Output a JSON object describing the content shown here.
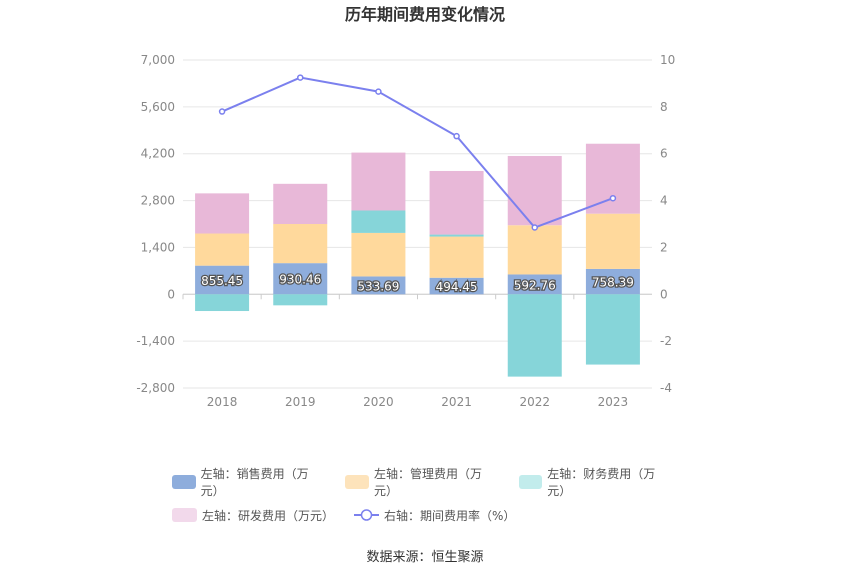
{
  "chart_data": {
    "type": "bar+line",
    "title": "历年期间费用变化情况",
    "categories": [
      "2018",
      "2019",
      "2020",
      "2021",
      "2022",
      "2023"
    ],
    "left_axis": {
      "min": -2800,
      "max": 7000,
      "ticks": [
        "7,000",
        "5,600",
        "4,200",
        "2,800",
        "1,400",
        "0",
        "-1,400",
        "-2,800"
      ],
      "tick_values": [
        7000,
        5600,
        4200,
        2800,
        1400,
        0,
        -1400,
        -2800
      ]
    },
    "right_axis": {
      "min": -4,
      "max": 10,
      "ticks": [
        "10",
        "8",
        "6",
        "4",
        "2",
        "0",
        "-2",
        "-4"
      ],
      "tick_values": [
        10,
        8,
        6,
        4,
        2,
        0,
        -2,
        -4
      ]
    },
    "series": [
      {
        "name": "左轴：销售费用（万元）",
        "type": "bar",
        "axis": "left",
        "color": "#8eaddc",
        "values": [
          855.45,
          930.46,
          533.69,
          494.45,
          592.76,
          758.39
        ],
        "labels": [
          "855.45",
          "930.46",
          "533.69",
          "494.45",
          "592.76",
          "758.39"
        ]
      },
      {
        "name": "左轴：管理费用（万元）",
        "type": "bar",
        "axis": "left",
        "color": "#ffd99c",
        "values": [
          960,
          1170,
          1300,
          1230,
          1470,
          1650
        ]
      },
      {
        "name": "左轴：财务费用（万元）",
        "type": "bar",
        "axis": "left",
        "color": "#86d5d9",
        "values": [
          -500,
          -330,
          670,
          60,
          -2460,
          -2100
        ]
      },
      {
        "name": "左轴：研发费用（万元）",
        "type": "bar",
        "axis": "left",
        "color": "#e8b8d8",
        "values": [
          1200,
          1200,
          1730,
          1900,
          2070,
          2090
        ]
      },
      {
        "name": "右轴：期间费用率（%）",
        "type": "line",
        "axis": "right",
        "color": "#7b80ee",
        "values": [
          7.8,
          9.25,
          8.65,
          6.75,
          2.85,
          4.1
        ]
      }
    ]
  },
  "legend": [
    {
      "label": "左轴：销售费用（万元）",
      "color": "#8eaddc",
      "kind": "box"
    },
    {
      "label": "左轴：管理费用（万元）",
      "color": "#fde3bb",
      "kind": "box"
    },
    {
      "label": "左轴：财务费用（万元）",
      "color": "#c2ecec",
      "kind": "box"
    },
    {
      "label": "左轴：研发费用（万元）",
      "color": "#f2d9eb",
      "kind": "box"
    },
    {
      "label": "右轴：期间费用率（%）",
      "color": "#7b80ee",
      "kind": "line"
    }
  ],
  "source": "数据来源：恒生聚源"
}
